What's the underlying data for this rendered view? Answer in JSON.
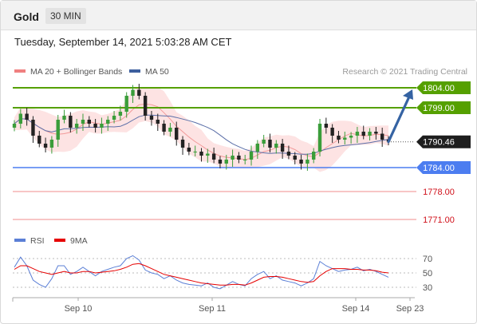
{
  "header": {
    "title": "Gold",
    "timeframe": "30 MIN"
  },
  "date_label": "Tuesday, September 14, 2021 5:03:28 AM CET",
  "copyright": "Research © 2021 Trading Central",
  "legend": [
    {
      "label": "MA 20 + Bollinger Bands",
      "color": "#f08080"
    },
    {
      "label": "MA 50",
      "color": "#3d5f9e"
    }
  ],
  "rsi_legend": [
    {
      "label": "RSI",
      "color": "#5b7fd6"
    },
    {
      "label": "9MA",
      "color": "#e60000"
    }
  ],
  "colors": {
    "up": "#3a9d3a",
    "down": "#222222",
    "resistance": "#55a000",
    "support": "#4c7df0",
    "target": "#d0101a",
    "current": "#1e1e1e",
    "arrow": "#3563a3"
  },
  "chart_data": [
    {
      "type": "candlestick",
      "ylim": [
        1767,
        1808
      ],
      "price_levels": [
        {
          "label": "1804.00",
          "value": 1804.0,
          "kind": "resistance"
        },
        {
          "label": "1799.00",
          "value": 1799.0,
          "kind": "resistance"
        },
        {
          "label": "1790.46",
          "value": 1790.46,
          "kind": "current"
        },
        {
          "label": "1784.00",
          "value": 1784.0,
          "kind": "support"
        },
        {
          "label": "1778.00",
          "value": 1778.0,
          "kind": "target"
        },
        {
          "label": "1771.00",
          "value": 1771.0,
          "kind": "target"
        }
      ],
      "x_ticks": [
        "Sep 10",
        "Sep 11",
        "Sep 14",
        "Sep 23"
      ],
      "closes": [
        1795,
        1797.5,
        1796,
        1792,
        1790,
        1789,
        1791,
        1796,
        1797,
        1794,
        1795,
        1796,
        1795,
        1794,
        1795,
        1796,
        1797,
        1798,
        1802,
        1803.5,
        1802,
        1797,
        1796,
        1795,
        1793,
        1794,
        1791,
        1789,
        1788,
        1788,
        1787,
        1787.5,
        1786,
        1785,
        1786,
        1787,
        1786,
        1786,
        1788,
        1790,
        1791,
        1789,
        1790,
        1788,
        1787,
        1786,
        1785,
        1786,
        1788,
        1795,
        1794,
        1792,
        1791,
        1791.5,
        1792,
        1793,
        1792,
        1793,
        1792.5,
        1791,
        1790.5
      ],
      "projection": {
        "from": 1790.46,
        "to": 1804.0
      }
    },
    {
      "type": "line",
      "title": "RSI",
      "ylim": [
        20,
        80
      ],
      "y_ticks": [
        70,
        50,
        30
      ],
      "series": [
        {
          "name": "RSI",
          "values": [
            58,
            72,
            60,
            40,
            34,
            30,
            42,
            60,
            60,
            48,
            52,
            58,
            52,
            46,
            52,
            55,
            58,
            60,
            70,
            74,
            68,
            54,
            50,
            48,
            42,
            46,
            40,
            36,
            34,
            33,
            32,
            36,
            30,
            28,
            33,
            38,
            34,
            32,
            42,
            48,
            52,
            42,
            46,
            40,
            38,
            36,
            32,
            36,
            42,
            66,
            60,
            56,
            52,
            54,
            55,
            58,
            53,
            55,
            52,
            48,
            44
          ]
        },
        {
          "name": "9MA",
          "values": [
            55,
            60,
            60,
            56,
            52,
            50,
            48,
            50,
            52,
            50,
            50,
            52,
            52,
            50,
            51,
            52,
            53,
            55,
            58,
            62,
            63,
            60,
            56,
            52,
            48,
            46,
            44,
            42,
            40,
            38,
            36,
            35,
            34,
            33,
            33,
            34,
            34,
            33,
            36,
            40,
            44,
            45,
            45,
            44,
            42,
            40,
            38,
            37,
            38,
            46,
            52,
            56,
            56,
            56,
            55,
            55,
            54,
            54,
            53,
            51,
            50
          ]
        }
      ]
    }
  ]
}
